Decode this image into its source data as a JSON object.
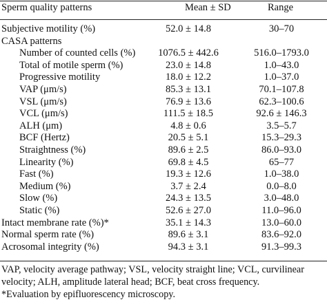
{
  "table": {
    "headers": {
      "pattern": "Sperm quality patterns",
      "mean": "Mean ± SD",
      "range": "Range"
    },
    "rows": [
      {
        "label": "Subjective motility (%)",
        "mean": "52.0 ± 14.8",
        "range": "30–70",
        "level": 0
      },
      {
        "label": "CASA patterns",
        "mean": "",
        "range": "",
        "level": 0
      },
      {
        "label": "Number of counted cells (%)",
        "mean": "1076.5 ± 442.6",
        "range": "516.0–1793.0",
        "level": 1
      },
      {
        "label": "Total of motile sperm (%)",
        "mean": "23.0 ± 14.8",
        "range": "1.0–43.0",
        "level": 1
      },
      {
        "label": "Progressive motility",
        "mean": "18.0 ± 12.2",
        "range": "1.0–37.0",
        "level": 1
      },
      {
        "label": "VAP (μm/s)",
        "mean": "85.3 ± 13.1",
        "range": "70.1–107.8",
        "level": 1
      },
      {
        "label": "VSL (μm/s)",
        "mean": "76.9 ± 13.6",
        "range": "62.3–100.6",
        "level": 1
      },
      {
        "label": "VCL (μm/s)",
        "mean": "111.5 ± 18.5",
        "range": "92.6 ± 146.3",
        "level": 1
      },
      {
        "label": "ALH (μm)",
        "mean": "4.8 ± 0.6",
        "range": "3.5–5.7",
        "level": 1
      },
      {
        "label": "BCF (Hertz)",
        "mean": "20.5 ± 5.1",
        "range": "15.3–29.3",
        "level": 1
      },
      {
        "label": "Straightness (%)",
        "mean": "89.6 ± 2.5",
        "range": "86.0–93.0",
        "level": 1
      },
      {
        "label": "Linearity (%)",
        "mean": "69.8 ± 4.5",
        "range": "65–77",
        "level": 1
      },
      {
        "label": "Fast (%)",
        "mean": "19.3 ± 12.6",
        "range": "1.0–38.0",
        "level": 1
      },
      {
        "label": "Medium (%)",
        "mean": "3.7 ± 2.4",
        "range": "0.0–8.0",
        "level": 1
      },
      {
        "label": "Slow (%)",
        "mean": "24.3 ± 13.5",
        "range": "3.0–48.0",
        "level": 1
      },
      {
        "label": "Static (%)",
        "mean": "52.6 ± 27.0",
        "range": "11.0–96.0",
        "level": 1
      },
      {
        "label": "Intact membrane rate (%)*",
        "mean": "35.1 ± 14.3",
        "range": "13.0–60.0",
        "level": 0
      },
      {
        "label": "Normal sperm rate (%)",
        "mean": "89.6 ± 3.1",
        "range": "83.6–92.0",
        "level": 0
      },
      {
        "label": "Acrosomal integrity (%)",
        "mean": "94.3 ± 3.1",
        "range": "91.3–99.3",
        "level": 0
      }
    ]
  },
  "footnotes": {
    "line1": "VAP, velocity average pathway; VSL, velocity straight line; VCL, curvilinear",
    "line2": "velocity; ALH, amplitude lateral head; BCF, beat cross frequency.",
    "line3": "*Evaluation by epifluorescency microscopy."
  }
}
